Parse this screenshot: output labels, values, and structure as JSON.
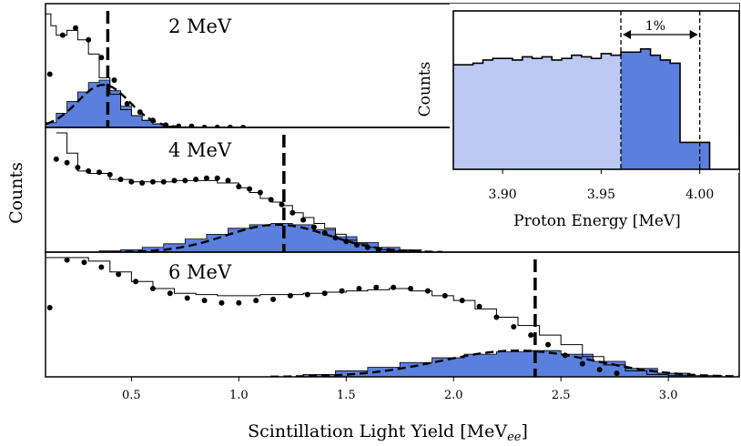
{
  "figure": {
    "ylabel": "Counts",
    "xlabel": "Scintillation Light Yield [MeV",
    "xlabel_sub": "ee",
    "xlabel_close": "]"
  },
  "chart_data": [
    {
      "type": "histogram",
      "panel": "2 MeV",
      "label": "2 MeV",
      "xlim": [
        0.1,
        3.33
      ],
      "ylim": [
        0,
        1
      ],
      "xticks": [
        0.5,
        1.0,
        1.5,
        2.0,
        2.5,
        3.0
      ],
      "xtick_labels": [
        "0.5",
        "1.0",
        "1.5",
        "2.0",
        "2.5",
        "3.0"
      ],
      "ylabel": "",
      "tagged_mean": 0.39,
      "fit": {
        "type": "gaussian",
        "mean": 0.37,
        "sigma": 0.12,
        "amplitude": 0.36
      },
      "tagged_hist": {
        "edges": [
          0.1,
          0.15,
          0.2,
          0.25,
          0.3,
          0.35,
          0.4,
          0.45,
          0.5,
          0.55,
          0.6,
          0.65,
          0.7,
          0.75
        ],
        "values": [
          0.04,
          0.12,
          0.22,
          0.3,
          0.38,
          0.4,
          0.31,
          0.18,
          0.1,
          0.06,
          0.03,
          0.01,
          0.0
        ]
      },
      "total_hist": {
        "edges": [
          0.1,
          0.125,
          0.15,
          0.2,
          0.25,
          0.3,
          0.35,
          0.4,
          0.45,
          0.5,
          0.55,
          0.6,
          0.65,
          0.7,
          0.75
        ],
        "values": [
          0.96,
          0.86,
          0.78,
          0.82,
          0.74,
          0.62,
          0.42,
          0.28,
          0.15,
          0.1,
          0.06,
          0.03,
          0.01,
          0.0
        ]
      },
      "data_points": {
        "x": [
          0.12,
          0.18,
          0.24,
          0.3,
          0.36,
          0.42,
          0.48,
          0.54,
          0.6,
          0.66,
          0.72,
          0.78,
          0.84,
          0.9,
          0.96,
          1.02
        ],
        "y": [
          0.45,
          0.78,
          0.84,
          0.74,
          0.59,
          0.4,
          0.2,
          0.13,
          0.06,
          0.02,
          0.01,
          0.01,
          0.0,
          0.0,
          0.0,
          0.0
        ]
      }
    },
    {
      "type": "histogram",
      "panel": "4 MeV",
      "label": "4 MeV",
      "xlim": [
        0.1,
        3.33
      ],
      "ylim": [
        0,
        1
      ],
      "tagged_mean": 1.21,
      "fit": {
        "type": "gaussian",
        "mean": 1.18,
        "sigma": 0.24,
        "amplitude": 0.23
      },
      "tagged_hist": {
        "edges": [
          0.35,
          0.45,
          0.55,
          0.65,
          0.75,
          0.85,
          0.95,
          1.05,
          1.15,
          1.25,
          1.35,
          1.45,
          1.55,
          1.65,
          1.75,
          1.85
        ],
        "values": [
          0.01,
          0.02,
          0.04,
          0.07,
          0.11,
          0.15,
          0.2,
          0.23,
          0.24,
          0.23,
          0.19,
          0.13,
          0.08,
          0.04,
          0.02
        ]
      },
      "total_hist": {
        "edges": [
          0.15,
          0.2,
          0.25,
          0.3,
          0.4,
          0.5,
          0.6,
          0.7,
          0.8,
          0.9,
          1.0,
          1.05,
          1.1,
          1.15,
          1.2,
          1.25,
          1.3,
          1.35,
          1.4,
          1.45,
          1.5,
          1.55,
          1.6,
          1.65,
          1.7,
          1.75,
          1.8,
          1.85
        ],
        "values": [
          1.0,
          0.83,
          0.68,
          0.66,
          0.61,
          0.59,
          0.59,
          0.6,
          0.6,
          0.58,
          0.54,
          0.5,
          0.45,
          0.42,
          0.39,
          0.33,
          0.29,
          0.24,
          0.2,
          0.15,
          0.1,
          0.07,
          0.04,
          0.02,
          0.01,
          0.0,
          0.0
        ]
      },
      "data_points": {
        "x": [
          0.15,
          0.2,
          0.25,
          0.3,
          0.35,
          0.4,
          0.45,
          0.5,
          0.55,
          0.6,
          0.65,
          0.7,
          0.75,
          0.8,
          0.85,
          0.9,
          0.95,
          1.0,
          1.05,
          1.1,
          1.15,
          1.2,
          1.25,
          1.3,
          1.35,
          1.4,
          1.45,
          1.5,
          1.55,
          1.6,
          1.65,
          1.7,
          1.75,
          1.8
        ],
        "y": [
          0.78,
          0.75,
          0.71,
          0.68,
          0.67,
          0.65,
          0.61,
          0.59,
          0.58,
          0.59,
          0.59,
          0.6,
          0.6,
          0.61,
          0.62,
          0.62,
          0.6,
          0.55,
          0.53,
          0.5,
          0.44,
          0.4,
          0.33,
          0.27,
          0.21,
          0.16,
          0.12,
          0.09,
          0.06,
          0.04,
          0.02,
          0.01,
          0.0,
          0.0
        ]
      }
    },
    {
      "type": "histogram",
      "panel": "6 MeV",
      "label": "6 MeV",
      "xlim": [
        0.1,
        3.33
      ],
      "ylim": [
        0,
        1
      ],
      "tagged_mean": 2.38,
      "fit": {
        "type": "gaussian",
        "mean": 2.3,
        "sigma": 0.36,
        "amplitude": 0.22
      },
      "tagged_hist": {
        "edges": [
          1.3,
          1.45,
          1.6,
          1.75,
          1.9,
          2.05,
          2.2,
          2.35,
          2.5,
          2.65,
          2.8,
          2.95,
          3.1,
          3.25
        ],
        "values": [
          0.02,
          0.05,
          0.08,
          0.12,
          0.16,
          0.19,
          0.21,
          0.22,
          0.19,
          0.13,
          0.07,
          0.03,
          0.01
        ]
      },
      "total_hist": {
        "edges": [
          0.1,
          0.2,
          0.3,
          0.4,
          0.5,
          0.6,
          0.7,
          0.8,
          0.9,
          1.0,
          1.1,
          1.2,
          1.3,
          1.4,
          1.5,
          1.6,
          1.7,
          1.8,
          1.9,
          2.0,
          2.1,
          2.2,
          2.3,
          2.4,
          2.5,
          2.6,
          2.7,
          2.8,
          2.9,
          3.0,
          3.1
        ],
        "values": [
          1.0,
          1.0,
          0.97,
          0.88,
          0.8,
          0.74,
          0.7,
          0.69,
          0.68,
          0.68,
          0.69,
          0.69,
          0.7,
          0.71,
          0.72,
          0.73,
          0.74,
          0.72,
          0.68,
          0.64,
          0.57,
          0.5,
          0.43,
          0.35,
          0.27,
          0.17,
          0.1,
          0.05,
          0.02,
          0.01
        ]
      },
      "data_points": {
        "x": [
          0.12,
          0.2,
          0.28,
          0.36,
          0.44,
          0.52,
          0.6,
          0.68,
          0.76,
          0.84,
          0.92,
          1.0,
          1.08,
          1.16,
          1.24,
          1.32,
          1.4,
          1.48,
          1.56,
          1.64,
          1.72,
          1.8,
          1.88,
          1.96,
          2.04,
          2.12,
          2.2,
          2.28,
          2.36,
          2.44,
          2.52,
          2.6,
          2.68,
          2.76
        ],
        "y": [
          0.58,
          0.98,
          0.96,
          0.92,
          0.86,
          0.8,
          0.74,
          0.7,
          0.66,
          0.64,
          0.62,
          0.62,
          0.64,
          0.65,
          0.68,
          0.69,
          0.7,
          0.72,
          0.74,
          0.75,
          0.75,
          0.74,
          0.72,
          0.68,
          0.64,
          0.59,
          0.5,
          0.42,
          0.35,
          0.27,
          0.18,
          0.11,
          0.06,
          0.03
        ]
      }
    },
    {
      "type": "histogram",
      "panel": "inset",
      "xlabel": "Proton Energy [MeV]",
      "ylabel": "Counts",
      "annotation": "1%",
      "xlim": [
        3.875,
        4.02
      ],
      "ylim": [
        0,
        1
      ],
      "xticks": [
        3.9,
        3.95,
        4.0
      ],
      "xtick_labels": [
        "3.90",
        "3.95",
        "4.00"
      ],
      "cut_lines": [
        3.96,
        4.0
      ],
      "hist": {
        "edges": [
          3.875,
          3.885,
          3.89,
          3.895,
          3.9,
          3.905,
          3.91,
          3.915,
          3.92,
          3.925,
          3.93,
          3.935,
          3.94,
          3.945,
          3.95,
          3.955,
          3.96,
          3.965,
          3.97,
          3.975,
          3.98,
          3.985,
          3.99,
          4.0,
          4.005
        ],
        "values": [
          0.66,
          0.67,
          0.69,
          0.7,
          0.7,
          0.69,
          0.71,
          0.7,
          0.71,
          0.69,
          0.7,
          0.72,
          0.71,
          0.7,
          0.73,
          0.72,
          0.74,
          0.74,
          0.76,
          0.72,
          0.69,
          0.67,
          0.17,
          0.17
        ]
      }
    }
  ]
}
